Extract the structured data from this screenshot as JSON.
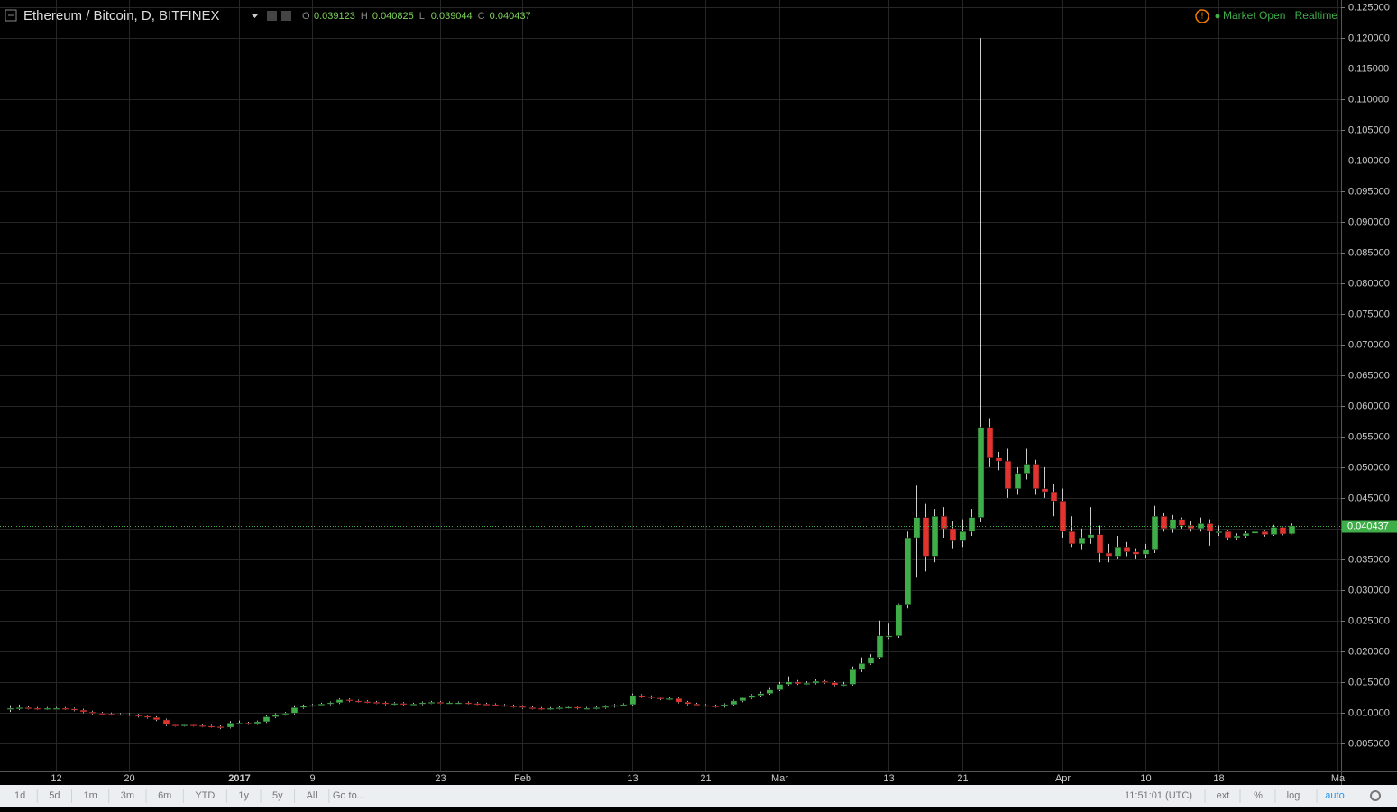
{
  "chart_data": {
    "type": "candlestick",
    "title": "Ethereum / Bitcoin, D, BITFINEX",
    "ohlc_letters": [
      "O",
      "H",
      "L",
      "C"
    ],
    "up_color": "#3fae49",
    "down_color": "#e2332f",
    "grid": true,
    "grid_color": "#262626",
    "categories": [
      null,
      null,
      null,
      null,
      null,
      "12",
      null,
      null,
      null,
      null,
      null,
      null,
      null,
      "20",
      null,
      null,
      null,
      null,
      null,
      null,
      null,
      null,
      null,
      null,
      null,
      "2017",
      null,
      null,
      null,
      null,
      null,
      null,
      null,
      "9",
      null,
      null,
      null,
      null,
      null,
      null,
      null,
      null,
      null,
      null,
      null,
      null,
      null,
      "23",
      null,
      null,
      null,
      null,
      null,
      null,
      null,
      null,
      "Feb",
      null,
      null,
      null,
      null,
      null,
      null,
      null,
      null,
      null,
      null,
      null,
      "13",
      null,
      null,
      null,
      null,
      null,
      null,
      null,
      "21",
      null,
      null,
      null,
      null,
      null,
      null,
      null,
      "Mar",
      null,
      null,
      null,
      null,
      null,
      null,
      null,
      null,
      null,
      null,
      null,
      "13",
      null,
      null,
      null,
      null,
      null,
      null,
      null,
      "21",
      null,
      null,
      null,
      null,
      null,
      null,
      null,
      null,
      null,
      null,
      "Apr",
      null,
      null,
      null,
      null,
      null,
      null,
      null,
      null,
      "10",
      null,
      null,
      null,
      null,
      null,
      null,
      null,
      "18",
      null,
      null,
      null,
      null,
      null,
      null,
      null,
      null,
      null,
      null,
      null,
      null,
      "Ma"
    ],
    "open": [
      0.0105,
      0.0107,
      0.0108,
      0.0107,
      0.0106,
      0.0107,
      0.0107,
      0.0106,
      0.0104,
      0.0101,
      0.0099,
      0.0098,
      0.0097,
      0.0097,
      0.0096,
      0.0094,
      0.0092,
      0.0088,
      0.008,
      0.0079,
      0.008,
      0.0079,
      0.0078,
      0.0077,
      0.0076,
      0.0083,
      0.0083,
      0.0082,
      0.0085,
      0.0093,
      0.0097,
      0.0099,
      0.0108,
      0.0111,
      0.0112,
      0.0114,
      0.0116,
      0.0121,
      0.0119,
      0.0118,
      0.0117,
      0.0116,
      0.0114,
      0.0115,
      0.0113,
      0.0114,
      0.0116,
      0.0117,
      0.0116,
      0.0116,
      0.0116,
      0.0115,
      0.0114,
      0.0113,
      0.0112,
      0.0111,
      0.011,
      0.0108,
      0.0107,
      0.0106,
      0.0107,
      0.0108,
      0.0109,
      0.0107,
      0.0107,
      0.0108,
      0.011,
      0.0112,
      0.0113,
      0.0128,
      0.0126,
      0.0124,
      0.0122,
      0.0123,
      0.0117,
      0.0114,
      0.0112,
      0.0111,
      0.011,
      0.0113,
      0.0119,
      0.0124,
      0.0128,
      0.0131,
      0.0137,
      0.0146,
      0.015,
      0.0147,
      0.0148,
      0.0151,
      0.0149,
      0.0145,
      0.0146,
      0.017,
      0.018,
      0.019,
      0.0225,
      0.0225,
      0.0275,
      0.0385,
      0.0418,
      0.0355,
      0.042,
      0.04,
      0.038,
      0.0395,
      0.0418,
      0.0565,
      0.0515,
      0.051,
      0.0465,
      0.049,
      0.0505,
      0.0465,
      0.046,
      0.0445,
      0.0395,
      0.0375,
      0.0385,
      0.039,
      0.036,
      0.0355,
      0.037,
      0.0362,
      0.0358,
      0.0365,
      0.042,
      0.04,
      0.0415,
      0.0405,
      0.04,
      0.0408,
      0.0395,
      0.0395,
      0.0385,
      0.0388,
      0.0392,
      0.0395,
      0.039,
      0.0402,
      0.039123,
      null,
      null,
      null,
      null,
      null
    ],
    "high": [
      0.0112,
      0.0113,
      0.011,
      0.0109,
      0.0109,
      0.0109,
      0.0109,
      0.0108,
      0.0106,
      0.0103,
      0.0101,
      0.01,
      0.0099,
      0.0099,
      0.0098,
      0.0096,
      0.0094,
      0.009,
      0.0082,
      0.0082,
      0.0082,
      0.0081,
      0.008,
      0.0079,
      0.0086,
      0.0087,
      0.0085,
      0.0087,
      0.0095,
      0.0099,
      0.0101,
      0.0112,
      0.0113,
      0.0114,
      0.0116,
      0.0118,
      0.0123,
      0.0123,
      0.0121,
      0.012,
      0.0119,
      0.0118,
      0.0117,
      0.0117,
      0.0116,
      0.0118,
      0.0119,
      0.0119,
      0.0118,
      0.0118,
      0.0118,
      0.0117,
      0.0116,
      0.0115,
      0.0114,
      0.0113,
      0.0112,
      0.011,
      0.0109,
      0.0109,
      0.011,
      0.0111,
      0.0111,
      0.0109,
      0.011,
      0.0112,
      0.0114,
      0.0115,
      0.0131,
      0.013,
      0.0128,
      0.0126,
      0.0125,
      0.0125,
      0.0119,
      0.0116,
      0.0114,
      0.0113,
      0.0115,
      0.0121,
      0.0126,
      0.013,
      0.0134,
      0.014,
      0.015,
      0.0159,
      0.0153,
      0.0151,
      0.0154,
      0.0153,
      0.0151,
      0.015,
      0.0175,
      0.019,
      0.0195,
      0.025,
      0.0245,
      0.0278,
      0.0395,
      0.047,
      0.044,
      0.0432,
      0.0435,
      0.0412,
      0.0415,
      0.0432,
      0.12,
      0.058,
      0.0525,
      0.053,
      0.05,
      0.053,
      0.0512,
      0.05,
      0.0472,
      0.0465,
      0.042,
      0.04,
      0.0435,
      0.0405,
      0.0375,
      0.0388,
      0.0378,
      0.0368,
      0.0375,
      0.0437,
      0.0425,
      0.0422,
      0.0418,
      0.0412,
      0.0418,
      0.0415,
      0.0405,
      0.0398,
      0.0392,
      0.0396,
      0.0398,
      0.0398,
      0.0406,
      0.0404,
      0.040825,
      null,
      null,
      null,
      null,
      null
    ],
    "low": [
      0.0101,
      0.0104,
      0.0105,
      0.0104,
      0.0104,
      0.0105,
      0.0104,
      0.0102,
      0.0099,
      0.0097,
      0.0096,
      0.0095,
      0.0095,
      0.0094,
      0.0092,
      0.009,
      0.0086,
      0.0078,
      0.0077,
      0.0077,
      0.0077,
      0.0076,
      0.0075,
      0.0073,
      0.0074,
      0.0081,
      0.008,
      0.008,
      0.0083,
      0.0091,
      0.0095,
      0.0097,
      0.0106,
      0.0109,
      0.011,
      0.0112,
      0.0114,
      0.0117,
      0.0116,
      0.0115,
      0.0114,
      0.0112,
      0.0112,
      0.0111,
      0.0111,
      0.0112,
      0.0114,
      0.0114,
      0.0114,
      0.0114,
      0.0113,
      0.0112,
      0.0111,
      0.011,
      0.0109,
      0.0108,
      0.0106,
      0.0105,
      0.0104,
      0.0104,
      0.0105,
      0.0106,
      0.0105,
      0.0105,
      0.0105,
      0.0106,
      0.0108,
      0.011,
      0.0111,
      0.0124,
      0.0122,
      0.012,
      0.012,
      0.0115,
      0.0112,
      0.011,
      0.0109,
      0.0108,
      0.0108,
      0.0111,
      0.0117,
      0.0122,
      0.0126,
      0.0129,
      0.0135,
      0.0144,
      0.0145,
      0.0145,
      0.0146,
      0.0147,
      0.0143,
      0.0143,
      0.0144,
      0.0166,
      0.0178,
      0.0188,
      0.022,
      0.0222,
      0.027,
      0.032,
      0.033,
      0.0345,
      0.0385,
      0.0368,
      0.037,
      0.0388,
      0.041,
      0.05,
      0.0495,
      0.045,
      0.0455,
      0.048,
      0.0455,
      0.045,
      0.042,
      0.0385,
      0.037,
      0.0365,
      0.0375,
      0.0345,
      0.0345,
      0.035,
      0.0355,
      0.035,
      0.0352,
      0.036,
      0.0395,
      0.0393,
      0.04,
      0.0395,
      0.0395,
      0.0372,
      0.0388,
      0.0382,
      0.0382,
      0.0385,
      0.039,
      0.0387,
      0.0388,
      0.0389,
      0.039044,
      null,
      null,
      null,
      null,
      null
    ],
    "close": [
      0.0107,
      0.0108,
      0.0107,
      0.0106,
      0.0107,
      0.0107,
      0.0106,
      0.0104,
      0.0101,
      0.0099,
      0.0098,
      0.0097,
      0.0097,
      0.0096,
      0.0094,
      0.0092,
      0.0088,
      0.008,
      0.0079,
      0.008,
      0.0079,
      0.0078,
      0.0077,
      0.0076,
      0.0083,
      0.0083,
      0.0082,
      0.0085,
      0.0093,
      0.0097,
      0.0099,
      0.0108,
      0.0111,
      0.0112,
      0.0114,
      0.0116,
      0.0121,
      0.0119,
      0.0118,
      0.0117,
      0.0116,
      0.0114,
      0.0115,
      0.0113,
      0.0114,
      0.0116,
      0.0117,
      0.0116,
      0.0116,
      0.0116,
      0.0115,
      0.0114,
      0.0113,
      0.0112,
      0.0111,
      0.011,
      0.0108,
      0.0107,
      0.0106,
      0.0107,
      0.0108,
      0.0109,
      0.0107,
      0.0107,
      0.0108,
      0.011,
      0.0112,
      0.0113,
      0.0128,
      0.0126,
      0.0124,
      0.0122,
      0.0123,
      0.0117,
      0.0114,
      0.0112,
      0.0111,
      0.011,
      0.0113,
      0.0119,
      0.0124,
      0.0128,
      0.0131,
      0.0137,
      0.0146,
      0.015,
      0.0147,
      0.0148,
      0.0151,
      0.0149,
      0.0145,
      0.0146,
      0.017,
      0.018,
      0.019,
      0.0225,
      0.0225,
      0.0275,
      0.0385,
      0.0418,
      0.0355,
      0.042,
      0.04,
      0.038,
      0.0395,
      0.0418,
      0.0565,
      0.0515,
      0.051,
      0.0465,
      0.049,
      0.0505,
      0.0465,
      0.046,
      0.0445,
      0.0395,
      0.0375,
      0.0385,
      0.039,
      0.036,
      0.0355,
      0.037,
      0.0362,
      0.0358,
      0.0365,
      0.042,
      0.04,
      0.0415,
      0.0405,
      0.04,
      0.0408,
      0.0395,
      0.0395,
      0.0385,
      0.0388,
      0.0392,
      0.0395,
      0.039,
      0.0402,
      0.0391,
      0.040437,
      null,
      null,
      null,
      null,
      null
    ],
    "ylim": [
      0.0004,
      0.1262
    ],
    "yticks": [
      {
        "value": 0.005,
        "label": "0.005000"
      },
      {
        "value": 0.01,
        "label": "0.010000"
      },
      {
        "value": 0.015,
        "label": "0.015000"
      },
      {
        "value": 0.02,
        "label": "0.020000"
      },
      {
        "value": 0.025,
        "label": "0.025000"
      },
      {
        "value": 0.03,
        "label": "0.030000"
      },
      {
        "value": 0.035,
        "label": "0.035000"
      },
      {
        "value": 0.04,
        "label": "0.040000"
      },
      {
        "value": 0.045,
        "label": "0.045000"
      },
      {
        "value": 0.05,
        "label": "0.050000"
      },
      {
        "value": 0.055,
        "label": "0.055000"
      },
      {
        "value": 0.06,
        "label": "0.060000"
      },
      {
        "value": 0.065,
        "label": "0.065000"
      },
      {
        "value": 0.07,
        "label": "0.070000"
      },
      {
        "value": 0.075,
        "label": "0.075000"
      },
      {
        "value": 0.08,
        "label": "0.080000"
      },
      {
        "value": 0.085,
        "label": "0.085000"
      },
      {
        "value": 0.09,
        "label": "0.090000"
      },
      {
        "value": 0.095,
        "label": "0.095000"
      },
      {
        "value": 0.1,
        "label": "0.100000"
      },
      {
        "value": 0.105,
        "label": "0.105000"
      },
      {
        "value": 0.11,
        "label": "0.110000"
      },
      {
        "value": 0.115,
        "label": "0.115000"
      },
      {
        "value": 0.12,
        "label": "0.120000"
      },
      {
        "value": 0.125,
        "label": "0.125000"
      }
    ]
  },
  "header": {
    "status": "Market Open",
    "feed": "Realtime"
  },
  "toolbar": {
    "ranges": [
      "1d",
      "5d",
      "1m",
      "3m",
      "6m",
      "YTD",
      "1y",
      "5y",
      "All"
    ],
    "goto": "Go to...",
    "time": "11:51:01 (UTC)",
    "options": [
      "ext",
      "%",
      "log",
      "auto"
    ]
  }
}
